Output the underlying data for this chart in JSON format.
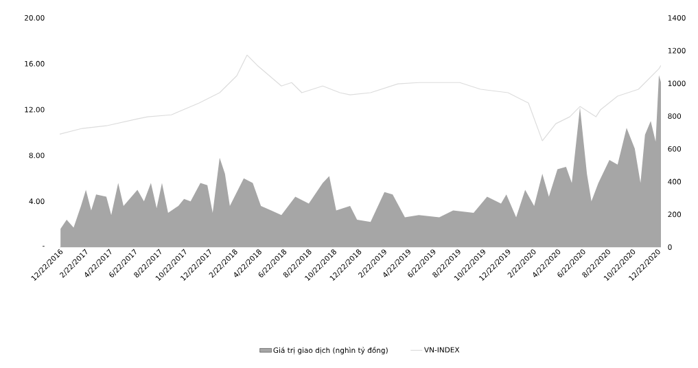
{
  "chart_data": {
    "type": "area",
    "legend": "bottom",
    "xlim": [
      "2016-12-22",
      "2020-12-31"
    ],
    "xticks": [
      {
        "value": "2016-12-22",
        "label": "12/22/2016"
      },
      {
        "value": "2017-02-22",
        "label": "2/22/2017"
      },
      {
        "value": "2017-04-22",
        "label": "4/22/2017"
      },
      {
        "value": "2017-06-22",
        "label": "6/22/2017"
      },
      {
        "value": "2017-08-22",
        "label": "8/22/2017"
      },
      {
        "value": "2017-10-22",
        "label": "10/22/2017"
      },
      {
        "value": "2017-12-22",
        "label": "12/22/2017"
      },
      {
        "value": "2018-02-22",
        "label": "2/22/2018"
      },
      {
        "value": "2018-04-22",
        "label": "4/22/2018"
      },
      {
        "value": "2018-06-22",
        "label": "6/22/2018"
      },
      {
        "value": "2018-08-22",
        "label": "8/22/2018"
      },
      {
        "value": "2018-10-22",
        "label": "10/22/2018"
      },
      {
        "value": "2018-12-22",
        "label": "12/22/2018"
      },
      {
        "value": "2019-02-22",
        "label": "2/22/2019"
      },
      {
        "value": "2019-04-22",
        "label": "4/22/2019"
      },
      {
        "value": "2019-06-22",
        "label": "6/22/2019"
      },
      {
        "value": "2019-08-22",
        "label": "8/22/2019"
      },
      {
        "value": "2019-10-22",
        "label": "10/22/2019"
      },
      {
        "value": "2019-12-22",
        "label": "12/22/2019"
      },
      {
        "value": "2020-02-22",
        "label": "2/22/2020"
      },
      {
        "value": "2020-04-22",
        "label": "4/22/2020"
      },
      {
        "value": "2020-06-22",
        "label": "6/22/2020"
      },
      {
        "value": "2020-08-22",
        "label": "8/22/2020"
      },
      {
        "value": "2020-10-22",
        "label": "10/22/2020"
      },
      {
        "value": "2020-12-22",
        "label": "12/22/2020"
      }
    ],
    "ylim": [
      0,
      20
    ],
    "yticks": [
      {
        "value": 0,
        "label": "-"
      },
      {
        "value": 4,
        "label": "4.00"
      },
      {
        "value": 8,
        "label": "8.00"
      },
      {
        "value": 12,
        "label": "12.00"
      },
      {
        "value": 16,
        "label": "16.00"
      },
      {
        "value": 20,
        "label": "20.00"
      }
    ],
    "y2lim": [
      0,
      1400
    ],
    "y2ticks": [
      0,
      200,
      400,
      600,
      800,
      1000,
      1200,
      1400
    ],
    "series": [
      {
        "name": "Giá trị giao dịch (nghìn tỷ đồng)",
        "color": "#a6a6a6",
        "x": [
          "2016-12-24",
          "2017-01-08",
          "2017-01-25",
          "2017-02-12",
          "2017-02-24",
          "2017-03-09",
          "2017-03-21",
          "2017-04-15",
          "2017-04-27",
          "2017-05-14",
          "2017-05-27",
          "2017-06-30",
          "2017-07-16",
          "2017-08-02",
          "2017-08-16",
          "2017-08-29",
          "2017-09-13",
          "2017-10-08",
          "2017-10-22",
          "2017-11-07",
          "2017-12-01",
          "2017-12-18",
          "2017-12-31",
          "2018-01-17",
          "2018-01-30",
          "2018-02-11",
          "2018-03-17",
          "2018-04-08",
          "2018-04-28",
          "2018-05-23",
          "2018-06-17",
          "2018-07-21",
          "2018-08-23",
          "2018-09-26",
          "2018-10-12",
          "2018-10-29",
          "2018-12-02",
          "2018-12-19",
          "2019-01-21",
          "2019-02-24",
          "2019-03-16",
          "2019-04-15",
          "2019-05-19",
          "2019-07-08",
          "2019-08-11",
          "2019-09-30",
          "2019-11-02",
          "2019-12-06",
          "2019-12-19",
          "2020-01-12",
          "2020-02-03",
          "2020-02-25",
          "2020-03-16",
          "2020-04-01",
          "2020-04-22",
          "2020-05-13",
          "2020-05-27",
          "2020-06-16",
          "2020-07-03",
          "2020-07-14",
          "2020-07-31",
          "2020-08-27",
          "2020-09-16",
          "2020-10-08",
          "2020-10-28",
          "2020-11-11",
          "2020-11-22",
          "2020-12-06",
          "2020-12-18",
          "2020-12-26",
          "2020-12-31"
        ],
        "values": [
          1.6,
          2.4,
          1.7,
          3.6,
          5.0,
          3.2,
          4.6,
          4.4,
          2.8,
          5.6,
          3.6,
          5.0,
          4.0,
          5.6,
          3.4,
          5.6,
          3.0,
          3.6,
          4.2,
          4.0,
          5.6,
          5.4,
          3.0,
          7.8,
          6.4,
          3.6,
          6.0,
          5.6,
          3.6,
          3.2,
          2.8,
          4.4,
          3.8,
          5.6,
          6.2,
          3.2,
          3.6,
          2.4,
          2.2,
          4.8,
          4.6,
          2.6,
          2.8,
          2.6,
          3.2,
          3.0,
          4.4,
          3.8,
          4.6,
          2.6,
          5.0,
          3.6,
          6.4,
          4.4,
          6.8,
          7.0,
          5.6,
          12.2,
          6.4,
          4.0,
          5.6,
          7.6,
          7.2,
          10.4,
          8.6,
          5.6,
          9.8,
          11.0,
          9.2,
          15.0,
          14.4
        ]
      },
      {
        "type": "line",
        "axis": "y2",
        "name": "VN-INDEX",
        "color": "#dcdcdc",
        "x": [
          "2016-12-22",
          "2017-02-15",
          "2017-04-15",
          "2017-06-30",
          "2017-07-25",
          "2017-09-21",
          "2017-11-28",
          "2018-01-17",
          "2018-02-28",
          "2018-03-25",
          "2018-04-19",
          "2018-06-17",
          "2018-07-12",
          "2018-08-06",
          "2018-09-26",
          "2018-11-07",
          "2018-12-02",
          "2019-01-21",
          "2019-03-29",
          "2019-05-19",
          "2019-07-08",
          "2019-08-27",
          "2019-10-17",
          "2019-12-23",
          "2020-02-11",
          "2020-03-16",
          "2020-04-18",
          "2020-05-22",
          "2020-06-16",
          "2020-07-25",
          "2020-08-05",
          "2020-09-16",
          "2020-11-06",
          "2020-12-26",
          "2020-12-31"
        ],
        "values": [
          690,
          725,
          741,
          783,
          796,
          808,
          880,
          943,
          1047,
          1173,
          1110,
          984,
          1005,
          943,
          984,
          943,
          930,
          943,
          997,
          1005,
          1005,
          1005,
          964,
          943,
          880,
          649,
          754,
          796,
          859,
          796,
          838,
          922,
          964,
          1089,
          1110
        ]
      }
    ]
  }
}
